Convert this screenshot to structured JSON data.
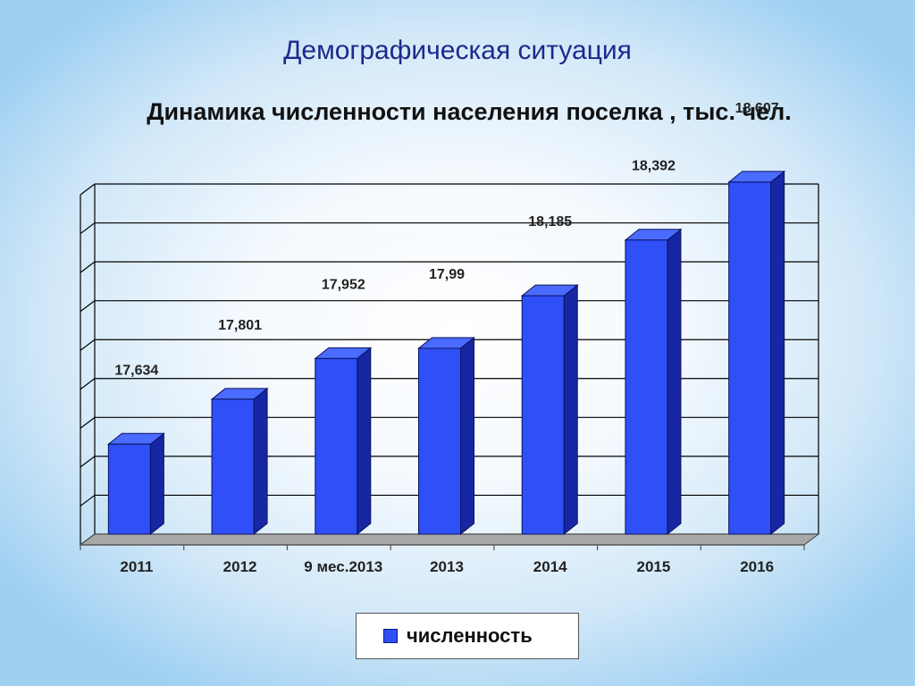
{
  "page": {
    "title": "Демографическая ситуация"
  },
  "chart_data": {
    "type": "bar",
    "title": "Динамика численности населения поселка , тыс. чел.",
    "categories": [
      "2011",
      "2012",
      "9 мес.2013",
      "2013",
      "2014",
      "2015",
      "2016"
    ],
    "series": [
      {
        "name": "численность",
        "values": [
          17.634,
          17.801,
          17.952,
          17.99,
          18.185,
          18.392,
          18.607
        ],
        "labels": [
          "17,634",
          "17,801",
          "17,952",
          "17,99",
          "18,185",
          "18,392",
          "18,607"
        ],
        "color": "#2f4ff7"
      }
    ],
    "ylim": [
      17.3,
      18.6
    ],
    "grid": true,
    "legend": "bottom"
  }
}
